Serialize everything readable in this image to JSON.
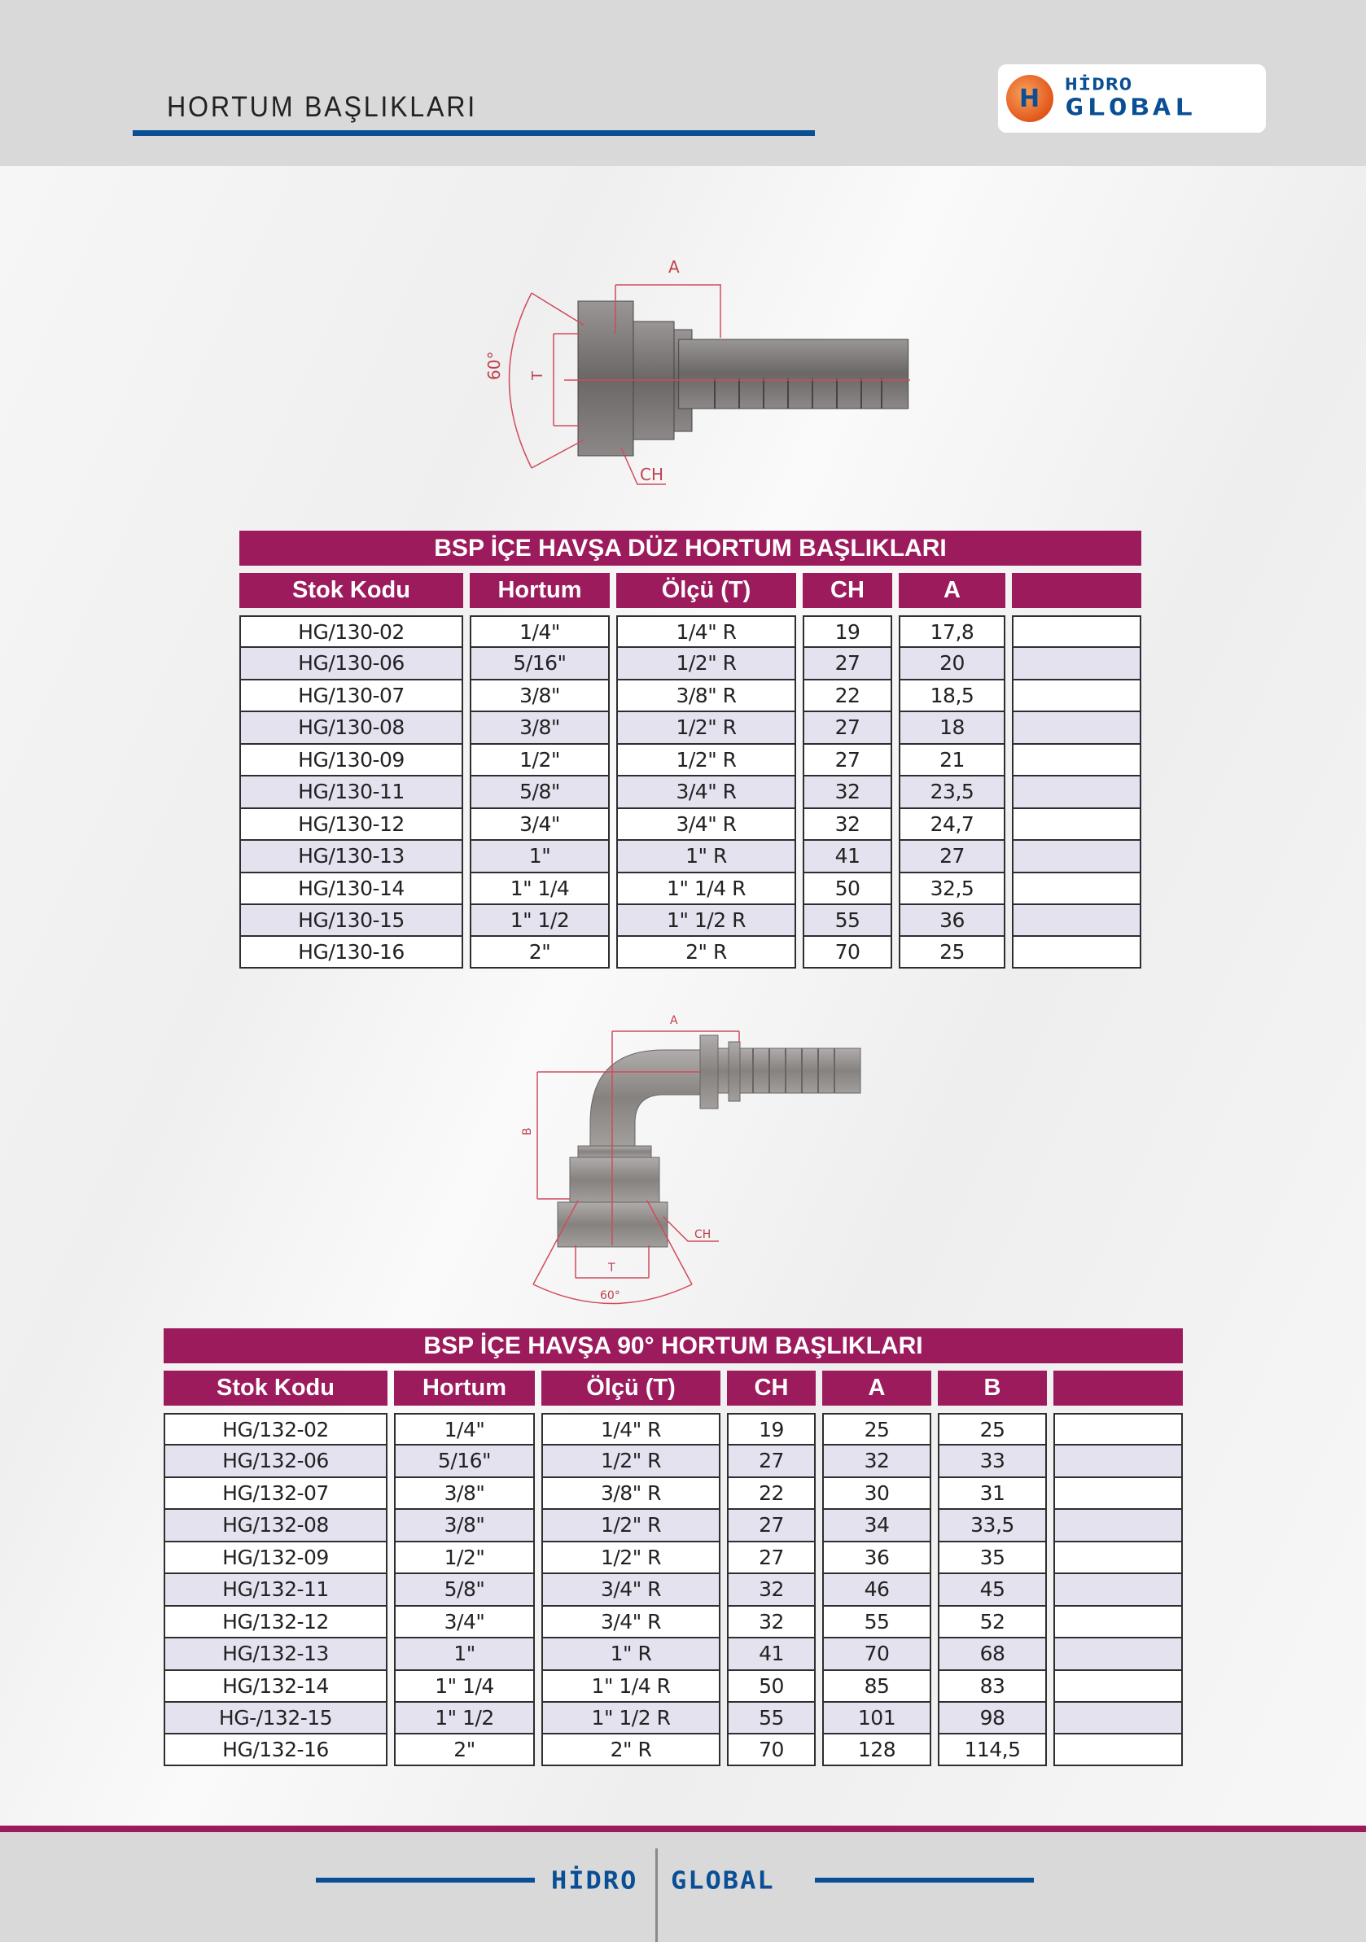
{
  "header": {
    "title": "HORTUM BAŞLIKLARI",
    "logo_text": [
      "HİDRO",
      "GLOBAL"
    ]
  },
  "colors": {
    "accent": "#9c1b5c",
    "brand_blue": "#0a4f95",
    "row_alt": "#e4e2ef"
  },
  "drawing1": {
    "dim_a": "A",
    "dim_t": "T",
    "angle": "60°",
    "dim_ch": "CH"
  },
  "drawing2": {
    "dim_a": "A",
    "dim_b": "B",
    "dim_t": "T",
    "angle": "60°",
    "dim_ch": "CH"
  },
  "table1": {
    "title": "BSP İÇE HAVŞA DÜZ HORTUM BAŞLIKLARI",
    "columns": [
      "Stok Kodu",
      "Hortum",
      "Ölçü (T)",
      "CH",
      "A",
      ""
    ],
    "rows": [
      [
        "HG/130-02",
        "1/4\"",
        "1/4\" R",
        "19",
        "17,8",
        ""
      ],
      [
        "HG/130-06",
        "5/16\"",
        "1/2\" R",
        "27",
        "20",
        ""
      ],
      [
        "HG/130-07",
        "3/8\"",
        "3/8\" R",
        "22",
        "18,5",
        ""
      ],
      [
        "HG/130-08",
        "3/8\"",
        "1/2\" R",
        "27",
        "18",
        ""
      ],
      [
        "HG/130-09",
        "1/2\"",
        "1/2\" R",
        "27",
        "21",
        ""
      ],
      [
        "HG/130-11",
        "5/8\"",
        "3/4\" R",
        "32",
        "23,5",
        ""
      ],
      [
        "HG/130-12",
        "3/4\"",
        "3/4\" R",
        "32",
        "24,7",
        ""
      ],
      [
        "HG/130-13",
        "1\"",
        "1\" R",
        "41",
        "27",
        ""
      ],
      [
        "HG/130-14",
        "1\" 1/4",
        "1\" 1/4 R",
        "50",
        "32,5",
        ""
      ],
      [
        "HG/130-15",
        "1\" 1/2",
        "1\" 1/2 R",
        "55",
        "36",
        ""
      ],
      [
        "HG/130-16",
        "2\"",
        "2\" R",
        "70",
        "25",
        ""
      ]
    ]
  },
  "table2": {
    "title": "BSP İÇE HAVŞA 90° HORTUM BAŞLIKLARI",
    "columns": [
      "Stok Kodu",
      "Hortum",
      "Ölçü (T)",
      "CH",
      "A",
      "B",
      ""
    ],
    "rows": [
      [
        "HG/132-02",
        "1/4\"",
        "1/4\" R",
        "19",
        "25",
        "25",
        ""
      ],
      [
        "HG/132-06",
        "5/16\"",
        "1/2\" R",
        "27",
        "32",
        "33",
        ""
      ],
      [
        "HG/132-07",
        "3/8\"",
        "3/8\" R",
        "22",
        "30",
        "31",
        ""
      ],
      [
        "HG/132-08",
        "3/8\"",
        "1/2\" R",
        "27",
        "34",
        "33,5",
        ""
      ],
      [
        "HG/132-09",
        "1/2\"",
        "1/2\" R",
        "27",
        "36",
        "35",
        ""
      ],
      [
        "HG/132-11",
        "5/8\"",
        "3/4\" R",
        "32",
        "46",
        "45",
        ""
      ],
      [
        "HG/132-12",
        "3/4\"",
        "3/4\" R",
        "32",
        "55",
        "52",
        ""
      ],
      [
        "HG/132-13",
        "1\"",
        "1\" R",
        "41",
        "70",
        "68",
        ""
      ],
      [
        "HG/132-14",
        "1\" 1/4",
        "1\" 1/4 R",
        "50",
        "85",
        "83",
        ""
      ],
      [
        "HG-/132-15",
        "1\" 1/2",
        "1\" 1/2 R",
        "55",
        "101",
        "98",
        ""
      ],
      [
        "HG/132-16",
        "2\"",
        "2\" R",
        "70",
        "128",
        "114,5",
        ""
      ]
    ]
  },
  "footer": {
    "left": "HİDRO",
    "right": "GLOBAL"
  }
}
